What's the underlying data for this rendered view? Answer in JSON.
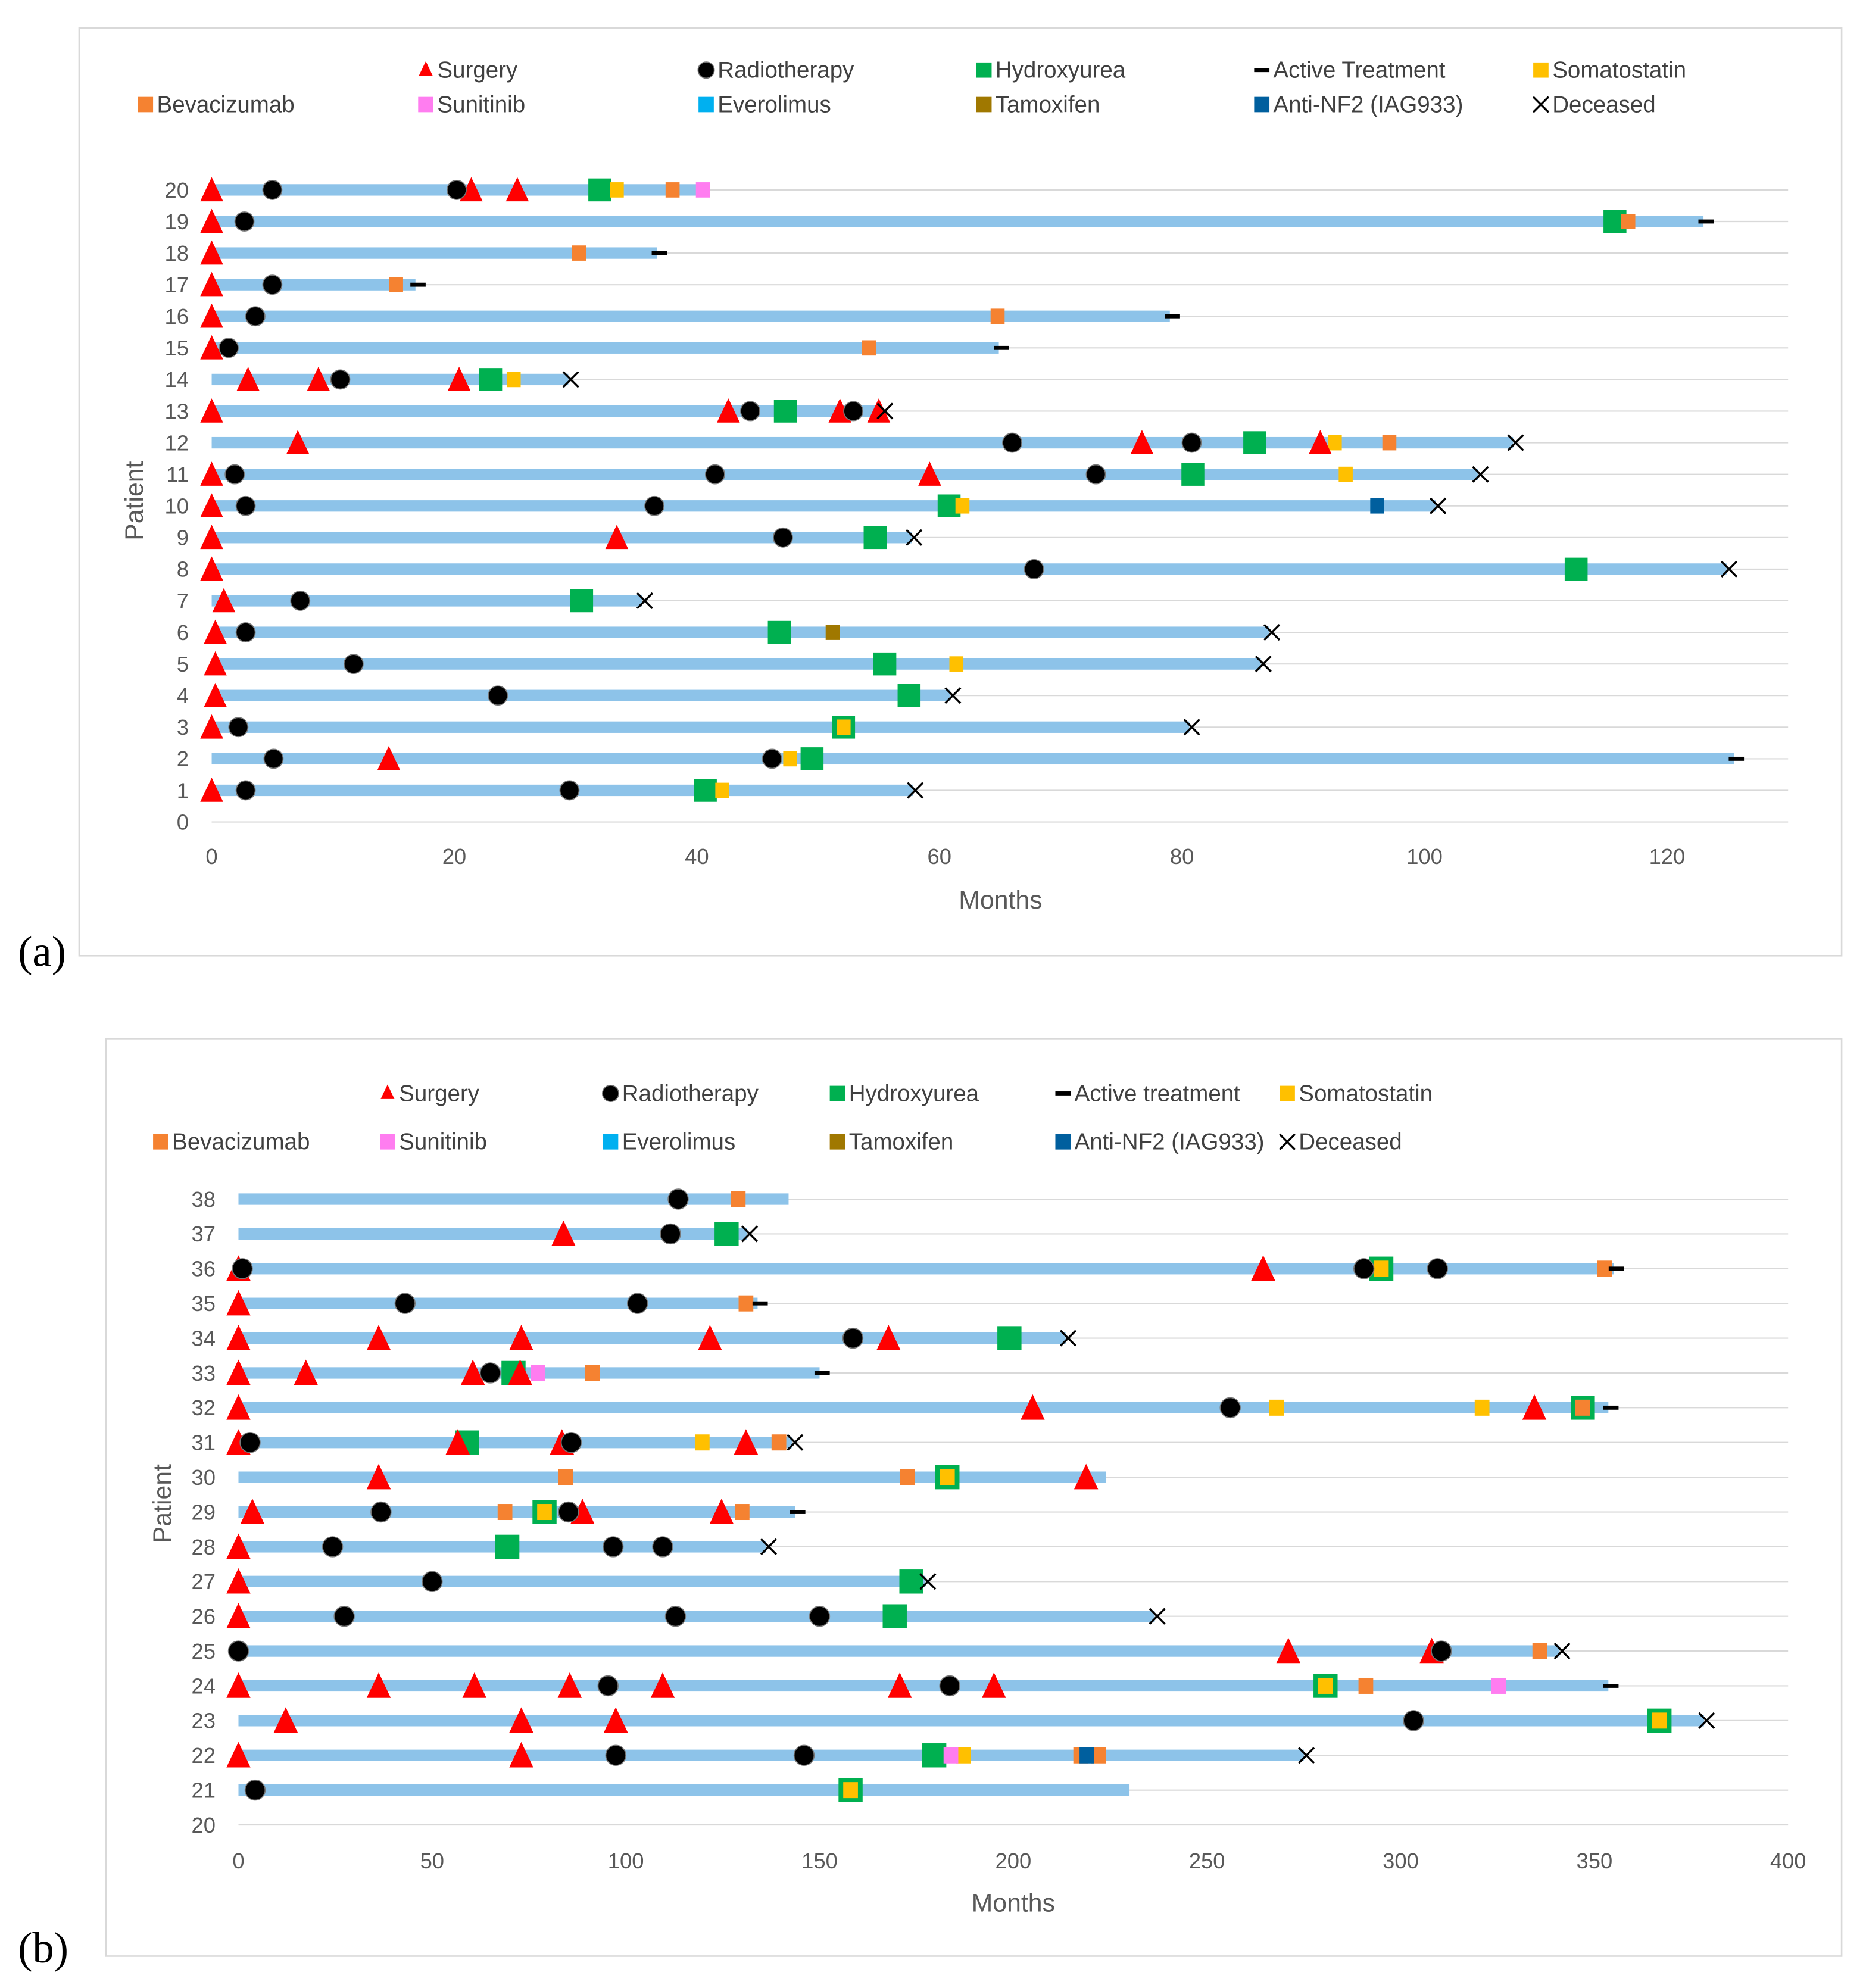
{
  "colors": {
    "bar": "#8DC3E9",
    "grid": "#D9D9D9",
    "surgery": "#FF0000",
    "radiotherapy": "#000000",
    "hydroxyurea": "#00B050",
    "active": "#000000",
    "somatostatin": "#FFC000",
    "bevacizumab": "#F58231",
    "sunitinib": "#FF7DF0",
    "everolimus": "#00B0F0",
    "tamoxifen": "#A07800",
    "anti_nf2": "#005F9E",
    "deceased": "#000000"
  },
  "chart_data": [
    {
      "panel_label": "(a)",
      "type": "timeline",
      "xlabel": "Months",
      "ylabel": "Patient",
      "xlim": [
        0,
        130
      ],
      "xticks": [
        "0",
        "20",
        "40",
        "60",
        "80",
        "100",
        "120"
      ],
      "xtick_values": [
        0,
        20,
        40,
        60,
        80,
        100,
        120
      ],
      "yticks": [
        "0",
        "1",
        "2",
        "3",
        "4",
        "5",
        "6",
        "7",
        "8",
        "9",
        "10",
        "11",
        "12",
        "13",
        "14",
        "15",
        "16",
        "17",
        "18",
        "19",
        "20"
      ],
      "grid": true,
      "legend": [
        {
          "key": "surgery",
          "label": "Surgery"
        },
        {
          "key": "radiotherapy",
          "label": "Radiotherapy"
        },
        {
          "key": "hydroxyurea",
          "label": "Hydroxyurea"
        },
        {
          "key": "active",
          "label": "Active Treatment"
        },
        {
          "key": "somatostatin",
          "label": "Somatostatin"
        },
        {
          "key": "bevacizumab",
          "label": "Bevacizumab"
        },
        {
          "key": "sunitinib",
          "label": "Sunitinib"
        },
        {
          "key": "everolimus",
          "label": "Everolimus"
        },
        {
          "key": "tamoxifen",
          "label": "Tamoxifen"
        },
        {
          "key": "anti_nf2",
          "label": "Anti-NF2 (IAG933)"
        },
        {
          "key": "deceased",
          "label": "Deceased"
        }
      ],
      "patients": [
        {
          "id": 20,
          "end": 41,
          "surgery": [
            0,
            21.4,
            25.2
          ],
          "radiotherapy": [
            5,
            20.2
          ],
          "hydroxyurea": [
            32
          ],
          "somatostatin": [
            33.4
          ],
          "bevacizumab": [
            38
          ],
          "sunitinib": [
            40.5
          ]
        },
        {
          "id": 19,
          "end": 123,
          "surgery": [
            0
          ],
          "radiotherapy": [
            2.7
          ],
          "hydroxyurea": [
            115.7
          ],
          "bevacizumab": [
            116.8
          ],
          "active": [
            123
          ]
        },
        {
          "id": 18,
          "end": 36.7,
          "surgery": [
            0
          ],
          "bevacizumab": [
            30.3
          ],
          "active": [
            36.7
          ]
        },
        {
          "id": 17,
          "end": 16.8,
          "surgery": [
            0
          ],
          "radiotherapy": [
            5
          ],
          "bevacizumab": [
            15.2
          ],
          "active": [
            16.8
          ]
        },
        {
          "id": 16,
          "end": 79,
          "surgery": [
            0
          ],
          "radiotherapy": [
            3.6
          ],
          "bevacizumab": [
            64.8
          ],
          "active": [
            79
          ]
        },
        {
          "id": 15,
          "end": 64.9,
          "surgery": [
            0
          ],
          "radiotherapy": [
            1.4
          ],
          "bevacizumab": [
            54.2
          ],
          "active": [
            64.9
          ]
        },
        {
          "id": 14,
          "end": 29.4,
          "surgery": [
            3,
            8.8,
            20.4
          ],
          "radiotherapy": [
            10.6
          ],
          "hydroxyurea": [
            23
          ],
          "somatostatin": [
            24.9
          ],
          "deceased": [
            29.4
          ]
        },
        {
          "id": 13,
          "end": 55.3,
          "surgery": [
            0,
            42.6,
            51.8,
            55
          ],
          "radiotherapy": [
            44.4,
            52.9
          ],
          "hydroxyurea": [
            47.3
          ],
          "deceased": [
            55.3
          ]
        },
        {
          "id": 12,
          "end": 107.3,
          "surgery": [
            7.1,
            76.7,
            91.4
          ],
          "radiotherapy": [
            66,
            80.8
          ],
          "hydroxyurea": [
            86
          ],
          "somatostatin": [
            92.6
          ],
          "bevacizumab": [
            97.1
          ],
          "deceased": [
            107.3
          ]
        },
        {
          "id": 11,
          "end": 104.4,
          "surgery": [
            0,
            59.2
          ],
          "radiotherapy": [
            1.9,
            41.5,
            72.9
          ],
          "hydroxyurea": [
            80.9
          ],
          "somatostatin": [
            93.5
          ],
          "deceased": [
            104.4
          ]
        },
        {
          "id": 10,
          "end": 100.9,
          "surgery": [
            0
          ],
          "radiotherapy": [
            2.8,
            36.5
          ],
          "hydroxyurea": [
            60.8
          ],
          "somatostatin": [
            61.9
          ],
          "anti_nf2": [
            96.1
          ],
          "deceased": [
            100.9
          ]
        },
        {
          "id": 9,
          "end": 57.7,
          "surgery": [
            0,
            33.4
          ],
          "radiotherapy": [
            47.1
          ],
          "hydroxyurea": [
            54.7
          ],
          "deceased": [
            57.7
          ]
        },
        {
          "id": 8,
          "end": 124.9,
          "surgery": [
            0
          ],
          "radiotherapy": [
            67.8
          ],
          "hydroxyurea": [
            112.5
          ],
          "deceased": [
            124.9
          ]
        },
        {
          "id": 7,
          "end": 35.5,
          "surgery": [
            1
          ],
          "radiotherapy": [
            7.3
          ],
          "hydroxyurea": [
            30.5
          ],
          "deceased": [
            35.5
          ]
        },
        {
          "id": 6,
          "end": 87.2,
          "surgery": [
            0.3
          ],
          "radiotherapy": [
            2.8
          ],
          "hydroxyurea": [
            46.8
          ],
          "tamoxifen": [
            51.2
          ],
          "deceased": [
            87.2
          ]
        },
        {
          "id": 5,
          "end": 86.5,
          "surgery": [
            0.3
          ],
          "radiotherapy": [
            11.7
          ],
          "hydroxyurea": [
            55.5
          ],
          "somatostatin": [
            61.4
          ],
          "deceased": [
            86.5
          ]
        },
        {
          "id": 4,
          "end": 60.9,
          "surgery": [
            0.3
          ],
          "radiotherapy": [
            23.6
          ],
          "hydroxyurea": [
            57.5
          ],
          "deceased": [
            60.9
          ]
        },
        {
          "id": 3,
          "end": 80.6,
          "surgery": [
            0
          ],
          "radiotherapy": [
            2.2
          ],
          "hydroxyurea": [
            52.1
          ],
          "somatostatin": [
            52.1
          ],
          "deceased": [
            80.6
          ]
        },
        {
          "id": 2,
          "end": 125.5,
          "surgery": [
            14.6
          ],
          "radiotherapy": [
            5.1,
            46.2
          ],
          "somatostatin": [
            47.7
          ],
          "hydroxyurea": [
            49.5
          ],
          "active": [
            125.5
          ]
        },
        {
          "id": 1,
          "end": 57.8,
          "surgery": [
            0
          ],
          "radiotherapy": [
            2.8,
            29.5
          ],
          "hydroxyurea": [
            40.7
          ],
          "somatostatin": [
            42.1
          ],
          "deceased": [
            57.8
          ]
        }
      ]
    },
    {
      "panel_label": "(b)",
      "type": "timeline",
      "xlabel": "Months",
      "ylabel": "Patient",
      "xlim": [
        0,
        400
      ],
      "xticks": [
        "0",
        "50",
        "100",
        "150",
        "200",
        "250",
        "300",
        "350",
        "400"
      ],
      "xtick_values": [
        0,
        50,
        100,
        150,
        200,
        250,
        300,
        350,
        400
      ],
      "yticks": [
        "20",
        "21",
        "22",
        "23",
        "24",
        "25",
        "26",
        "27",
        "28",
        "29",
        "30",
        "31",
        "32",
        "33",
        "34",
        "35",
        "36",
        "37",
        "38"
      ],
      "grid": true,
      "legend": [
        {
          "key": "surgery",
          "label": "Surgery"
        },
        {
          "key": "radiotherapy",
          "label": "Radiotherapy"
        },
        {
          "key": "hydroxyurea",
          "label": "Hydroxyurea"
        },
        {
          "key": "active",
          "label": "Active treatment"
        },
        {
          "key": "somatostatin",
          "label": "Somatostatin"
        },
        {
          "key": "bevacizumab",
          "label": "Bevacizumab"
        },
        {
          "key": "sunitinib",
          "label": "Sunitinib"
        },
        {
          "key": "everolimus",
          "label": "Everolimus"
        },
        {
          "key": "tamoxifen",
          "label": "Tamoxifen"
        },
        {
          "key": "anti_nf2",
          "label": "Anti-NF2 (IAG933)"
        },
        {
          "key": "deceased",
          "label": "Deceased"
        }
      ],
      "patients": [
        {
          "id": 38,
          "end": 142,
          "radiotherapy": [
            113.5
          ],
          "bevacizumab": [
            129
          ]
        },
        {
          "id": 37,
          "end": 131.3,
          "surgery": [
            83.9
          ],
          "radiotherapy": [
            111.5
          ],
          "hydroxyurea": [
            126
          ],
          "deceased": [
            131.3
          ]
        },
        {
          "id": 36,
          "end": 355,
          "surgery": [
            0,
            264.5
          ],
          "radiotherapy": [
            1,
            290.5,
            309.5
          ],
          "hydroxyurea": [
            295
          ],
          "somatostatin": [
            295
          ],
          "bevacizumab": [
            352.6
          ],
          "active": [
            355
          ]
        },
        {
          "id": 35,
          "end": 134,
          "surgery": [
            0
          ],
          "radiotherapy": [
            43,
            103
          ],
          "bevacizumab": [
            131
          ],
          "active": [
            134
          ]
        },
        {
          "id": 34,
          "end": 213.5,
          "surgery": [
            0,
            36.2,
            73,
            121.7,
            167.8
          ],
          "radiotherapy": [
            158.6
          ],
          "hydroxyurea": [
            199
          ],
          "deceased": [
            213.5
          ]
        },
        {
          "id": 33,
          "end": 150,
          "surgery": [
            0,
            17.4,
            60.5,
            72.7
          ],
          "radiotherapy": [
            65
          ],
          "hydroxyurea": [
            71
          ],
          "sunitinib": [
            77.3
          ],
          "bevacizumab": [
            91.4
          ],
          "active": [
            150
          ]
        },
        {
          "id": 32,
          "end": 353.6,
          "surgery": [
            0,
            205,
            334.5
          ],
          "radiotherapy": [
            256
          ],
          "somatostatin": [
            268,
            321
          ],
          "hydroxyurea": [
            347
          ],
          "bevacizumab": [
            347
          ],
          "active": [
            353.6
          ]
        },
        {
          "id": 31,
          "end": 143,
          "surgery": [
            0,
            56.6,
            83.5,
            131
          ],
          "radiotherapy": [
            3,
            85.9
          ],
          "hydroxyurea": [
            59
          ],
          "somatostatin": [
            119.7
          ],
          "bevacizumab": [
            139.5
          ],
          "deceased": [
            143
          ]
        },
        {
          "id": 30,
          "end": 224,
          "surgery": [
            36.2,
            218.8
          ],
          "bevacizumab": [
            84.5,
            172.7
          ],
          "hydroxyurea": [
            183
          ],
          "somatostatin": [
            183
          ]
        },
        {
          "id": 29,
          "end": 143.7,
          "surgery": [
            3.6,
            88.8,
            124.7
          ],
          "radiotherapy": [
            36.8,
            85.2
          ],
          "bevacizumab": [
            68.8,
            130
          ],
          "hydroxyurea": [
            79
          ],
          "somatostatin": [
            79
          ],
          "active": [
            143.7
          ]
        },
        {
          "id": 28,
          "end": 136.2,
          "surgery": [
            0
          ],
          "radiotherapy": [
            24.3,
            96.7,
            109.5
          ],
          "hydroxyurea": [
            69.4
          ],
          "deceased": [
            136.2
          ]
        },
        {
          "id": 27,
          "end": 177.3,
          "surgery": [
            0
          ],
          "radiotherapy": [
            50
          ],
          "hydroxyurea": [
            173.7
          ],
          "deceased": [
            177.3
          ]
        },
        {
          "id": 26,
          "end": 236.5,
          "surgery": [
            0
          ],
          "radiotherapy": [
            27.3,
            112.8,
            150
          ],
          "hydroxyurea": [
            169.4
          ],
          "deceased": [
            236.5
          ]
        },
        {
          "id": 25,
          "end": 341,
          "surgery": [
            271,
            308
          ],
          "radiotherapy": [
            0,
            310.5
          ],
          "bevacizumab": [
            335.9
          ],
          "deceased": [
            341
          ]
        },
        {
          "id": 24,
          "end": 353.6,
          "surgery": [
            0,
            36.2,
            60.9,
            85.5,
            109.5,
            170.7,
            195
          ],
          "radiotherapy": [
            95.4,
            183.6
          ],
          "hydroxyurea": [
            280.6
          ],
          "somatostatin": [
            280.6
          ],
          "bevacizumab": [
            291
          ],
          "sunitinib": [
            325.3
          ],
          "active": [
            353.6
          ]
        },
        {
          "id": 23,
          "end": 378.3,
          "surgery": [
            12.2,
            73,
            97.4
          ],
          "radiotherapy": [
            303.3
          ],
          "hydroxyurea": [
            366.8
          ],
          "somatostatin": [
            366.8
          ],
          "deceased": [
            378.3
          ]
        },
        {
          "id": 22,
          "end": 275,
          "surgery": [
            0,
            73
          ],
          "radiotherapy": [
            97.4,
            146
          ],
          "hydroxyurea": [
            179.6
          ],
          "sunitinib": [
            183.9
          ],
          "somatostatin": [
            187.2
          ],
          "bevacizumab": [
            217.4,
            222
          ],
          "anti_nf2": [
            219
          ],
          "deceased": [
            275
          ]
        },
        {
          "id": 21,
          "end": 230,
          "radiotherapy": [
            4.3
          ],
          "hydroxyurea": [
            158
          ],
          "somatostatin": [
            158
          ]
        }
      ]
    }
  ]
}
